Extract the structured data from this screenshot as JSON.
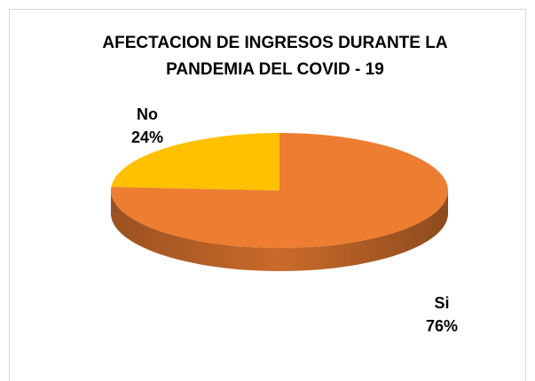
{
  "chart_data": {
    "type": "pie",
    "title": "AFECTACION DE INGRESOS DURANTE LA PANDEMIA DEL COVID - 19",
    "categories": [
      "Si",
      "No"
    ],
    "values": [
      76,
      24
    ],
    "value_labels": [
      "76%",
      "24%"
    ],
    "colors": [
      "#ED7D31",
      "#FFC000"
    ]
  }
}
